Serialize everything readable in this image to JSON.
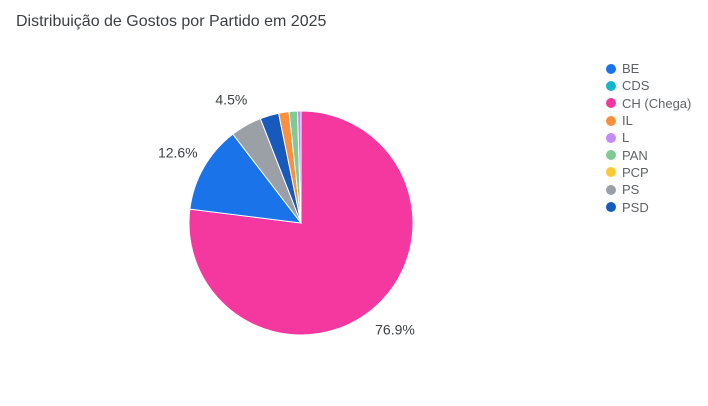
{
  "chart_data": {
    "type": "pie",
    "title": "Distribuição de Gostos por Partido em 2025",
    "legend_position": "right",
    "legend": [
      {
        "name": "BE",
        "color": "#1a73e8"
      },
      {
        "name": "CDS",
        "color": "#12b5cb"
      },
      {
        "name": "CH (Chega)",
        "color": "#f538a0"
      },
      {
        "name": "IL",
        "color": "#fa903e"
      },
      {
        "name": "L",
        "color": "#c58af9"
      },
      {
        "name": "PAN",
        "color": "#81c995"
      },
      {
        "name": "PCP",
        "color": "#fcc934"
      },
      {
        "name": "PS",
        "color": "#9aa0a6"
      },
      {
        "name": "PSD",
        "color": "#185abc"
      }
    ],
    "slices": [
      {
        "name": "CH (Chega)",
        "value": 76.9,
        "label": "76.9%"
      },
      {
        "name": "BE",
        "value": 12.6,
        "label": "12.6%"
      },
      {
        "name": "PS",
        "value": 4.5,
        "label": "4.5%"
      },
      {
        "name": "PSD",
        "value": 2.7,
        "label": ""
      },
      {
        "name": "IL",
        "value": 1.5,
        "label": ""
      },
      {
        "name": "PAN",
        "value": 1.2,
        "label": ""
      },
      {
        "name": "L",
        "value": 0.5,
        "label": ""
      },
      {
        "name": "CDS",
        "value": 0,
        "label": ""
      },
      {
        "name": "PCP",
        "value": 0,
        "label": ""
      }
    ]
  }
}
